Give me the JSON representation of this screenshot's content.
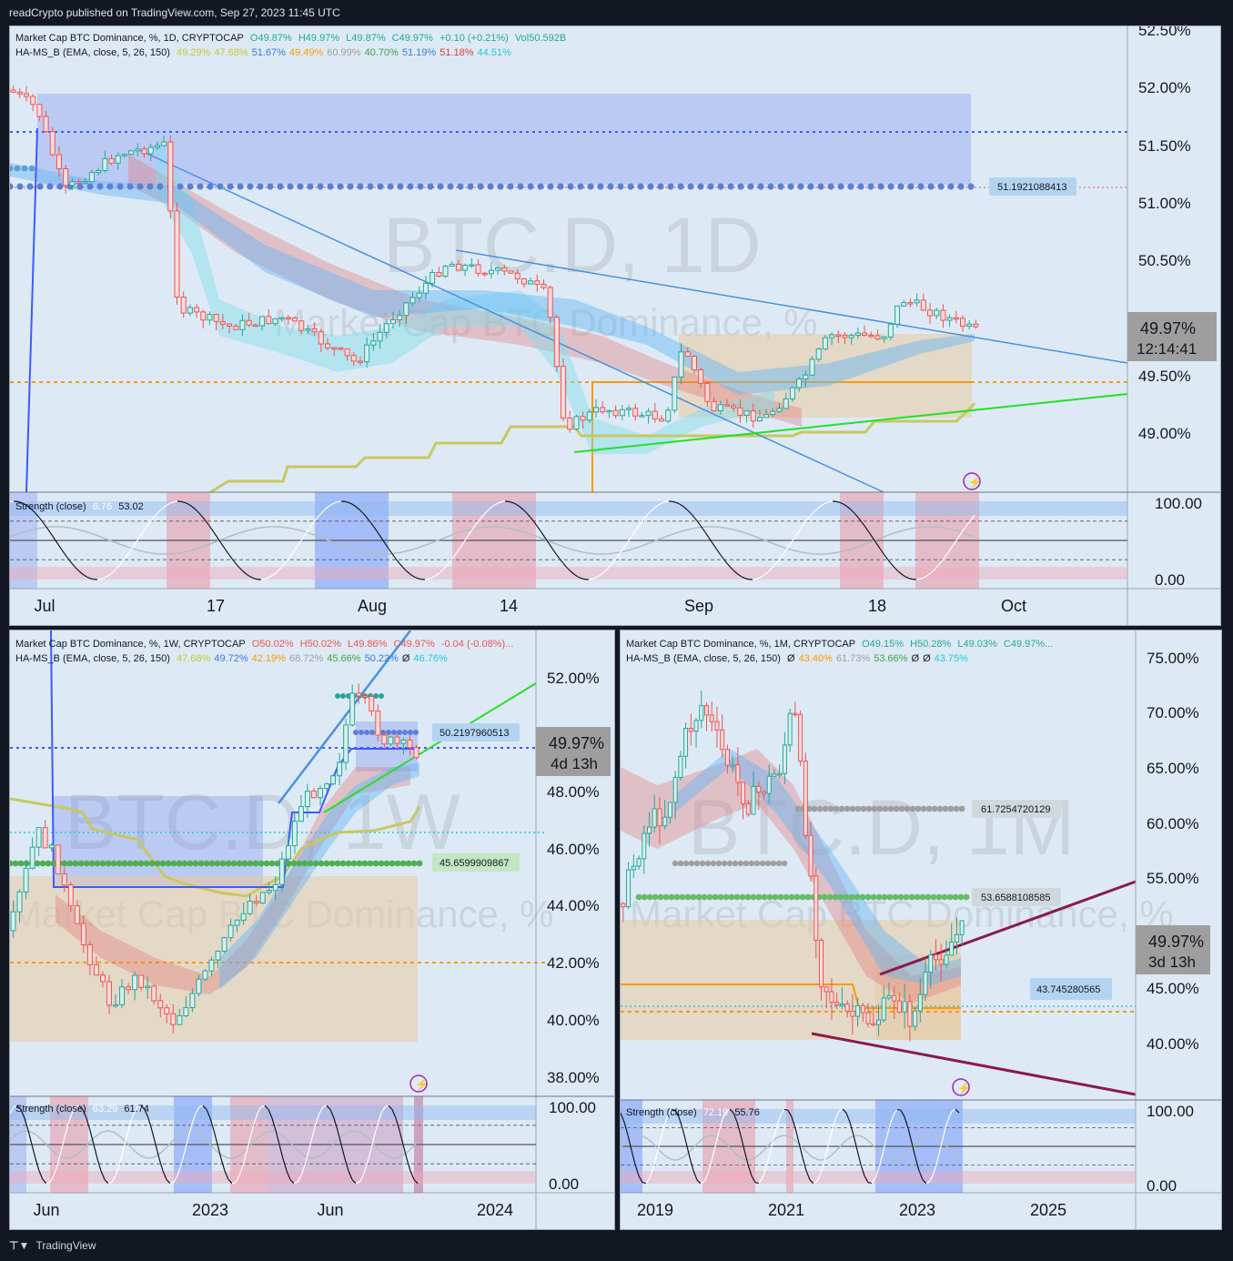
{
  "header": {
    "text": "readCrypto published on TradingView.com, Sep 27, 2023 11:45 UTC"
  },
  "footer": {
    "brand": "TradingView"
  },
  "colors": {
    "bg": "#ddeaf5",
    "up": "#26a69a",
    "down": "#ef5350",
    "blue_zone": "#7b8ef0",
    "tan_zone": "#e9c9a0",
    "red_band": "#e57373",
    "teal_band": "#80deea",
    "blue_band": "#64b5f6",
    "trend": "#4a90e2",
    "green": "#22e022",
    "orange": "#ff9800",
    "maroon": "#8b1a4a",
    "olive": "#c8c860"
  },
  "panels": [
    {
      "id": "daily",
      "title": "Market Cap BTC Dominance, %, 1D, CRYPTOCAP",
      "ohlc": {
        "o": "O49.87%",
        "h": "H49.97%",
        "l": "L49.87%",
        "c": "C49.97%",
        "chg": "+0.10 (+0.21%)",
        "vol": "Vol50.592B"
      },
      "indicator": {
        "name": "HA-MS_B (EMA, close, 5, 26, 150)",
        "values": [
          "49.29%",
          "47.68%",
          "51.67%",
          "49.49%",
          "60.99%",
          "40.70%",
          "51.19%",
          "51.18%",
          "44.51%"
        ],
        "colors": [
          "#c8c832",
          "#c8c832",
          "#3c78d8",
          "#ff9800",
          "#9e9e9e",
          "#43a047",
          "#3c78d8",
          "#e53935",
          "#26c6da"
        ]
      },
      "watermark_big": "BTC.D, 1D",
      "watermark_small": "Market Cap BTC Dominance, %",
      "y_ticks": [
        "52.50%",
        "52.00%",
        "51.50%",
        "51.00%",
        "50.50%",
        "49.50%",
        "49.00%"
      ],
      "price_label": "49.97%",
      "countdown": "12:14:41",
      "level_label": "51.1921088413",
      "x_ticks": [
        "Jul",
        "17",
        "Aug",
        "14",
        "Sep",
        "18",
        "Oct"
      ],
      "strength": {
        "name": "Strength (close)",
        "v1": "6.76",
        "v2": "53.02",
        "y_ticks": [
          "100.00",
          "0.00"
        ]
      }
    },
    {
      "id": "weekly",
      "title": "Market Cap BTC Dominance, %, 1W, CRYPTOCAP",
      "ohlc": {
        "o": "O50.02%",
        "h": "H50.02%",
        "l": "L49.86%",
        "c": "C49.97%",
        "chg": "-0.04 (-0.08%)...",
        "vol": ""
      },
      "indicator": {
        "name": "HA-MS_B (EMA, close, 5, 26, 150)",
        "values": [
          "47.68%",
          "49.72%",
          "42.19%",
          "68.72%",
          "45.66%",
          "50.22%",
          "Ø",
          "46.76%"
        ],
        "colors": [
          "#c8c832",
          "#3c78d8",
          "#ff9800",
          "#9e9e9e",
          "#43a047",
          "#3c78d8",
          "#131722",
          "#26c6da"
        ]
      },
      "watermark_big": "BTC.D, 1W",
      "watermark_small": "Market Cap BTC Dominance, %",
      "y_ticks": [
        "52.00%",
        "48.00%",
        "46.00%",
        "44.00%",
        "42.00%",
        "40.00%",
        "38.00%"
      ],
      "price_label": "49.97%",
      "countdown": "4d 13h",
      "level_label": "50.2197960513",
      "level_label2": "45.6599909867",
      "x_ticks": [
        "Jun",
        "2023",
        "Jun",
        "2024"
      ],
      "strength": {
        "name": "Strength (close)",
        "v1": "63.29",
        "v2": "61.74",
        "y_ticks": [
          "100.00",
          "0.00"
        ]
      }
    },
    {
      "id": "monthly",
      "title": "Market Cap BTC Dominance, %, 1M, CRYPTOCAP",
      "ohlc": {
        "o": "O49.15%",
        "h": "H50.28%",
        "l": "L49.03%",
        "c": "C49.97%...",
        "chg": "",
        "vol": ""
      },
      "indicator": {
        "name": "HA-MS_B (EMA, close, 5, 26, 150)",
        "values": [
          "Ø",
          "43.40%",
          "61.73%",
          "53.66%",
          "Ø",
          "Ø",
          "43.75%"
        ],
        "colors": [
          "#131722",
          "#ff9800",
          "#9e9e9e",
          "#43a047",
          "#131722",
          "#131722",
          "#26c6da"
        ]
      },
      "watermark_big": "BTC.D, 1M",
      "watermark_small": "Market Cap BTC Dominance, %",
      "y_ticks": [
        "75.00%",
        "70.00%",
        "65.00%",
        "60.00%",
        "55.00%",
        "45.00%",
        "40.00%"
      ],
      "price_label": "49.97%",
      "countdown": "3d 13h",
      "level_label": "61.7254720129",
      "level_label2": "53.6588108585",
      "level_label3": "43.745280565",
      "x_ticks": [
        "2019",
        "2021",
        "2023",
        "2025"
      ],
      "strength": {
        "name": "Strength (close)",
        "v1": "72.19",
        "v2": "55.76",
        "y_ticks": [
          "100.00",
          "0.00"
        ]
      }
    }
  ]
}
